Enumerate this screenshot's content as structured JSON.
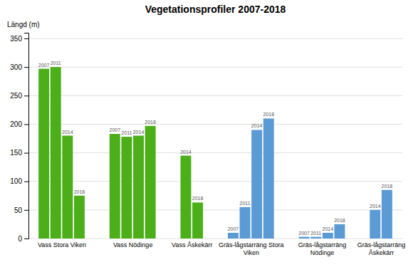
{
  "chart_data": {
    "type": "bar",
    "title": "Vegetationsprofiler 2007-2018",
    "ylabel": "Längd (m)",
    "categories": [
      "Vass Stora Viken",
      "Vass Nödinge",
      "Vass Åskekärr",
      "Gräs-lågstarräng Stora\nViken",
      "Gräs-lågstarräng\nNödinge",
      "Gräs-lågstarräng\nÅskekärr"
    ],
    "values": [
      [
        297,
        300,
        180,
        75
      ],
      [
        183,
        178,
        180,
        197
      ],
      [
        145,
        63
      ],
      [
        10,
        55,
        190,
        210
      ],
      [
        3,
        3,
        10,
        25
      ],
      [
        50,
        85
      ]
    ],
    "bar_labels": [
      [
        "2007",
        "2011",
        "2014",
        "2018"
      ],
      [
        "2007",
        "2011",
        "2014",
        "2018"
      ],
      [
        "2014",
        "2018"
      ],
      [
        "2007",
        "2011",
        "2014",
        "2018"
      ],
      [
        "2007",
        "2011",
        "2014",
        "2018"
      ],
      [
        "2014",
        "2018"
      ]
    ],
    "colors": [
      "#4caf1a",
      "#4caf1a",
      "#4caf1a",
      "#5b9bd5",
      "#5b9bd5",
      "#5b9bd5"
    ],
    "ylim": [
      0,
      360
    ],
    "yticks": [
      0,
      50,
      100,
      150,
      200,
      250,
      300,
      350
    ],
    "grid": true
  }
}
